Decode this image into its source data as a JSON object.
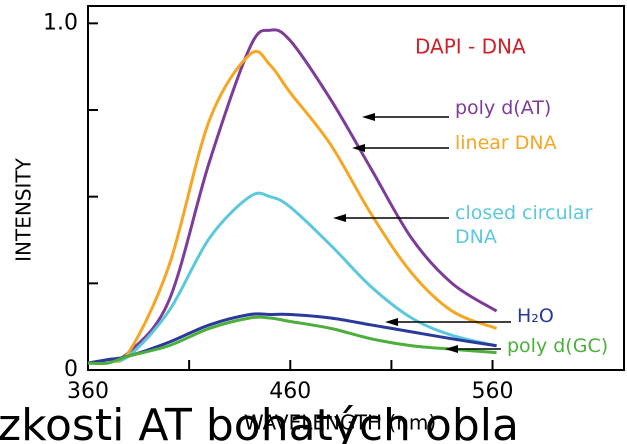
{
  "chart_data": {
    "type": "line",
    "annotation": "DAPI - DNA",
    "xlabel": "WAVELENGTH (nm)",
    "ylabel": "INTENSITY",
    "caption": "zkosti AT bohatých obla",
    "x": [
      360,
      370,
      380,
      400,
      420,
      440,
      450,
      460,
      480,
      500,
      520,
      540,
      562
    ],
    "series": [
      {
        "name": "poly d(AT)",
        "color": "#7d3c98",
        "values": [
          0.02,
          0.03,
          0.05,
          0.2,
          0.6,
          0.93,
          0.98,
          0.95,
          0.78,
          0.58,
          0.38,
          0.25,
          0.17
        ]
      },
      {
        "name": "linear DNA",
        "color": "#f5a623",
        "values": [
          0.02,
          0.03,
          0.05,
          0.3,
          0.72,
          0.91,
          0.88,
          0.8,
          0.65,
          0.45,
          0.28,
          0.17,
          0.12
        ]
      },
      {
        "name": "closed circular DNA",
        "color": "#5bc8dc",
        "values": [
          0.02,
          0.03,
          0.04,
          0.17,
          0.38,
          0.5,
          0.5,
          0.47,
          0.36,
          0.24,
          0.15,
          0.1,
          0.07
        ]
      },
      {
        "name": "H₂O",
        "color": "#2a3a9a",
        "values": [
          0.02,
          0.03,
          0.04,
          0.08,
          0.13,
          0.16,
          0.16,
          0.16,
          0.15,
          0.13,
          0.11,
          0.09,
          0.07
        ]
      },
      {
        "name": "poly d(GC)",
        "color": "#4caf3c",
        "values": [
          0.02,
          0.02,
          0.04,
          0.07,
          0.12,
          0.15,
          0.15,
          0.14,
          0.12,
          0.09,
          0.07,
          0.06,
          0.05
        ]
      }
    ],
    "annotation_color": "#d0202a",
    "xlim": [
      360,
      625
    ],
    "ylim": [
      0,
      1.05
    ],
    "xticks": [
      360,
      460,
      560
    ],
    "xminorticks": [
      410,
      510
    ],
    "yticks": [
      0,
      {
        "value": 1,
        "label": "1.0"
      }
    ],
    "yminorticks": [
      0.25,
      0.5,
      0.75
    ]
  }
}
